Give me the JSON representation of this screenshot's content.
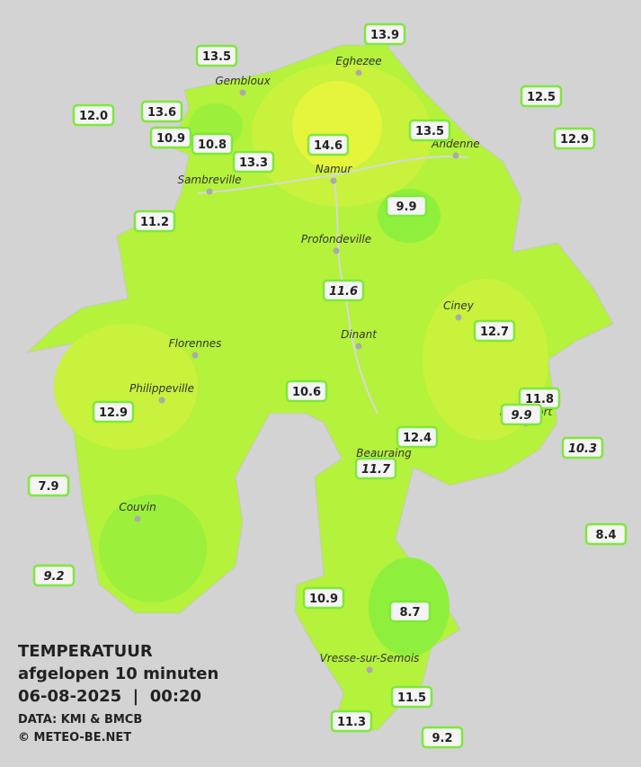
{
  "header": {
    "title": "TEMPERATUUR",
    "subtitle": "afgelopen 10 minuten",
    "datetime": "06-08-2025  |  00:20",
    "source": "DATA: KMI & BMCB",
    "credit": "© METEO-BE.NET"
  },
  "towns": [
    "Eghezee",
    "Gembloux",
    "Andenne",
    "Namur",
    "Sambreville",
    "Profondeville",
    "Ciney",
    "Dinant",
    "Florennes",
    "Philippeville",
    "Rochefort",
    "Beauraing",
    "Couvin",
    "Vresse-sur-Semois"
  ],
  "stations": [
    "13.9",
    "13.5",
    "12.0",
    "13.6",
    "12.5",
    "10.9",
    "10.8",
    "13.3",
    "14.6",
    "13.5",
    "12.9",
    "9.9",
    "11.2",
    "11.6",
    "12.7",
    "10.6",
    "12.9",
    "11.8",
    "9.9",
    "12.4",
    "10.3",
    "11.7",
    "7.9",
    "8.4",
    "9.2",
    "10.9",
    "8.7",
    "11.5",
    "11.3",
    "9.2"
  ]
}
